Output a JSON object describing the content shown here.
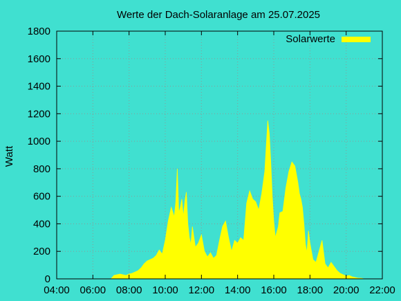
{
  "chart_data": {
    "type": "area",
    "title": "Werte der Dach-Solaranlage am 25.07.2025",
    "xlabel": "",
    "ylabel": "Watt",
    "xlim": [
      "04:00",
      "22:00"
    ],
    "ylim": [
      0,
      1800
    ],
    "x_ticks": [
      "04:00",
      "06:00",
      "08:00",
      "10:00",
      "12:00",
      "14:00",
      "16:00",
      "18:00",
      "20:00",
      "22:00"
    ],
    "y_ticks": [
      0,
      200,
      400,
      600,
      800,
      1000,
      1200,
      1400,
      1600,
      1800
    ],
    "grid": true,
    "legend_position": "top-right",
    "colors": {
      "background": "#40e0d0",
      "series": "#ffff00",
      "grid": "#8a9a98"
    },
    "series": [
      {
        "name": "Solarwerte",
        "x": [
          "07:00",
          "07:10",
          "07:20",
          "07:30",
          "07:40",
          "07:50",
          "08:00",
          "08:10",
          "08:20",
          "08:30",
          "08:40",
          "08:50",
          "09:00",
          "09:10",
          "09:20",
          "09:30",
          "09:40",
          "09:50",
          "10:00",
          "10:10",
          "10:20",
          "10:30",
          "10:35",
          "10:40",
          "10:45",
          "10:50",
          "10:55",
          "11:00",
          "11:05",
          "11:10",
          "11:15",
          "11:20",
          "11:25",
          "11:30",
          "11:40",
          "11:50",
          "12:00",
          "12:10",
          "12:20",
          "12:30",
          "12:40",
          "12:50",
          "13:00",
          "13:10",
          "13:20",
          "13:30",
          "13:40",
          "13:50",
          "14:00",
          "14:10",
          "14:20",
          "14:30",
          "14:40",
          "14:50",
          "15:00",
          "15:10",
          "15:20",
          "15:30",
          "15:40",
          "15:45",
          "15:50",
          "15:55",
          "16:00",
          "16:05",
          "16:10",
          "16:15",
          "16:20",
          "16:30",
          "16:40",
          "16:50",
          "17:00",
          "17:10",
          "17:20",
          "17:25",
          "17:30",
          "17:35",
          "17:40",
          "17:45",
          "17:50",
          "17:55",
          "18:00",
          "18:10",
          "18:20",
          "18:30",
          "18:40",
          "18:50",
          "19:00",
          "19:10",
          "19:20",
          "19:30",
          "19:40",
          "19:50",
          "20:00",
          "20:10",
          "20:20",
          "20:30",
          "20:40",
          "20:50",
          "21:00",
          "21:10"
        ],
        "y": [
          0,
          25,
          30,
          35,
          30,
          25,
          35,
          40,
          50,
          60,
          80,
          110,
          130,
          140,
          150,
          170,
          210,
          180,
          280,
          420,
          520,
          450,
          560,
          800,
          480,
          520,
          580,
          450,
          560,
          630,
          400,
          300,
          250,
          380,
          230,
          260,
          320,
          200,
          160,
          190,
          150,
          170,
          280,
          380,
          420,
          300,
          200,
          280,
          260,
          300,
          280,
          550,
          640,
          580,
          560,
          500,
          620,
          780,
          1150,
          1060,
          850,
          600,
          420,
          300,
          340,
          380,
          480,
          490,
          660,
          780,
          850,
          820,
          700,
          620,
          580,
          520,
          400,
          250,
          190,
          350,
          260,
          140,
          120,
          200,
          280,
          110,
          80,
          120,
          90,
          60,
          40,
          30,
          20,
          25,
          15,
          10,
          5,
          5,
          0,
          0
        ]
      }
    ]
  }
}
